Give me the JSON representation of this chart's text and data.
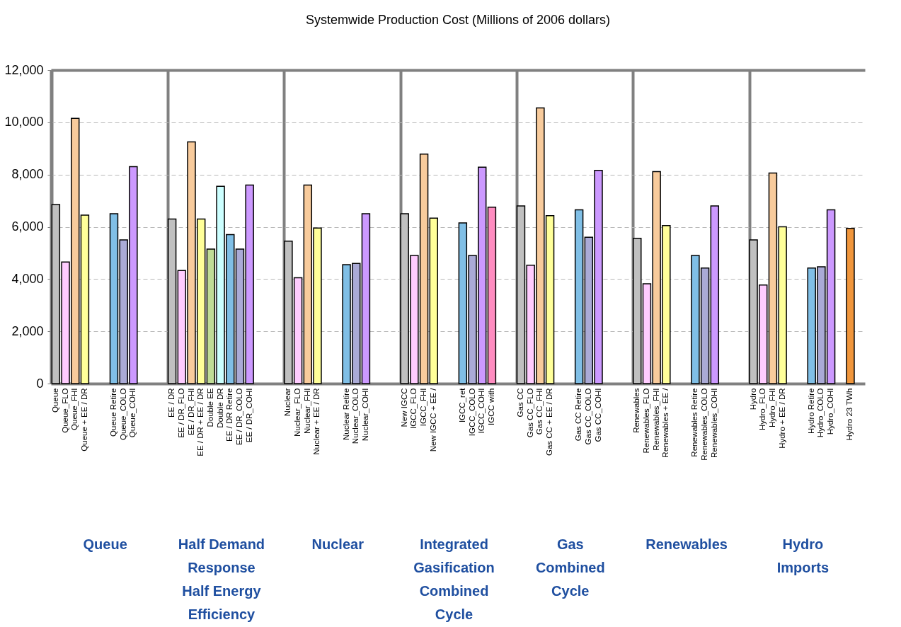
{
  "chart_data": {
    "type": "bar",
    "title": "Systemwide Production Cost (Millions of 2006 dollars)",
    "categories": [
      "Queue",
      "Queue_FLO",
      "Queue_FHI",
      "Queue + EE / DR",
      null,
      null,
      "Queue Retire",
      "Queue_COLO",
      "Queue_COHI",
      null,
      null,
      null,
      "EE / DR",
      "EE / DR_FLO",
      "EE / DR_FHI",
      "EE / DR + EE / DR",
      "Double EE",
      "Double DR",
      "EE / DR Retire",
      "EE / DR_COLO",
      "EE / DR_COHI",
      null,
      null,
      null,
      "Nuclear",
      "Nuclear_FLO",
      "Nuclear_FHI",
      "Nuclear + EE / DR",
      null,
      null,
      "Nuclear Retire",
      "Nuclear_COLO",
      "Nuclear_COHI",
      null,
      null,
      null,
      "New IGCC",
      "IGCC_FLO",
      "IGCC_FHI",
      "New IGCC + EE /",
      null,
      null,
      "IGCC_ret",
      "IGCC_COLO",
      "IGCC_COHI",
      "IGCC with",
      null,
      null,
      "Gas CC",
      "Gas CC_FLO",
      "Gas CC_FHI",
      "Gas CC + EE / DR",
      null,
      null,
      "Gas CC Retire",
      "Gas CC_COLO",
      "Gas CC_COHI",
      null,
      null,
      null,
      "Renewables",
      "Renewables_FLO",
      "Renewables_FHI",
      "Renewables + EE /",
      null,
      null,
      "Renewables Retire",
      "Renewables_COLO",
      "Renewables_COHI",
      null,
      null,
      null,
      "Hydro",
      "Hydro_FLO",
      "Hydro_FHI",
      "Hydro + EE / DR",
      null,
      null,
      "Hydro Retire",
      "Hydro_COLO",
      "Hydro_COHI",
      null,
      "Hydro 23 TWh",
      null
    ],
    "series": [
      {
        "values": [
          6850,
          4650,
          10150,
          6450,
          null,
          null,
          6500,
          5500,
          8300,
          null,
          null,
          null,
          6300,
          4330,
          9250,
          6300,
          5150,
          7550,
          5700,
          5150,
          7600,
          null,
          null,
          null,
          5450,
          4050,
          7600,
          5950,
          null,
          null,
          4550,
          4600,
          6500,
          null,
          null,
          null,
          6500,
          4900,
          8780,
          6330,
          null,
          null,
          6150,
          4900,
          8280,
          6750,
          null,
          null,
          6800,
          4530,
          10550,
          6430,
          null,
          null,
          6650,
          5600,
          8160,
          null,
          null,
          null,
          5560,
          3820,
          8110,
          6050,
          null,
          null,
          4900,
          4420,
          6800,
          null,
          null,
          null,
          5500,
          3770,
          8060,
          6000,
          null,
          null,
          4420,
          4470,
          6650,
          null,
          5940,
          null
        ],
        "colors": [
          "#c0c0c0",
          "#ffccff",
          "#f8cb9c",
          "#ffff99",
          null,
          null,
          "#80bfe6",
          "#aaaad6",
          "#cc99ff",
          null,
          null,
          null,
          "#c0c0c0",
          "#ffccff",
          "#f8cb9c",
          "#ffff99",
          "#c0dc96",
          "#ccffff",
          "#80bfe6",
          "#aaaad6",
          "#cc99ff",
          null,
          null,
          null,
          "#c0c0c0",
          "#ffccff",
          "#f8cb9c",
          "#ffff99",
          null,
          null,
          "#80bfe6",
          "#aaaad6",
          "#cc99ff",
          null,
          null,
          null,
          "#c0c0c0",
          "#ffccff",
          "#f8cb9c",
          "#ffff99",
          null,
          null,
          "#80bfe6",
          "#aaaad6",
          "#cc99ff",
          "#ff8cc0",
          null,
          null,
          "#c0c0c0",
          "#ffccff",
          "#f8cb9c",
          "#ffff99",
          null,
          null,
          "#80bfe6",
          "#aaaad6",
          "#cc99ff",
          null,
          null,
          null,
          "#c0c0c0",
          "#ffccff",
          "#f8cb9c",
          "#ffff99",
          null,
          null,
          "#80bfe6",
          "#aaaad6",
          "#cc99ff",
          null,
          null,
          null,
          "#c0c0c0",
          "#ffccff",
          "#f8cb9c",
          "#ffff99",
          null,
          null,
          "#80bfe6",
          "#aaaad6",
          "#cc99ff",
          null,
          "#f0963c",
          null
        ]
      }
    ],
    "ylim": [
      0,
      12000
    ],
    "yticks": [
      {
        "value": 0,
        "label": "0"
      },
      {
        "value": 2000,
        "label": "2,000"
      },
      {
        "value": 4000,
        "label": "4,000"
      },
      {
        "value": 6000,
        "label": "6,000"
      },
      {
        "value": 8000,
        "label": "8,000"
      },
      {
        "value": 10000,
        "label": "10,000"
      },
      {
        "value": 12000,
        "label": "12,000"
      }
    ],
    "grid": "y",
    "annotations": [
      "Queue",
      "Half Demand\nResponse\nHalf Energy\nEfficiency",
      "Nuclear",
      "Integrated\nGasification\nCombined\nCycle",
      "Gas\nCombined\nCycle",
      "Renewables",
      "Hydro\nImports"
    ]
  }
}
